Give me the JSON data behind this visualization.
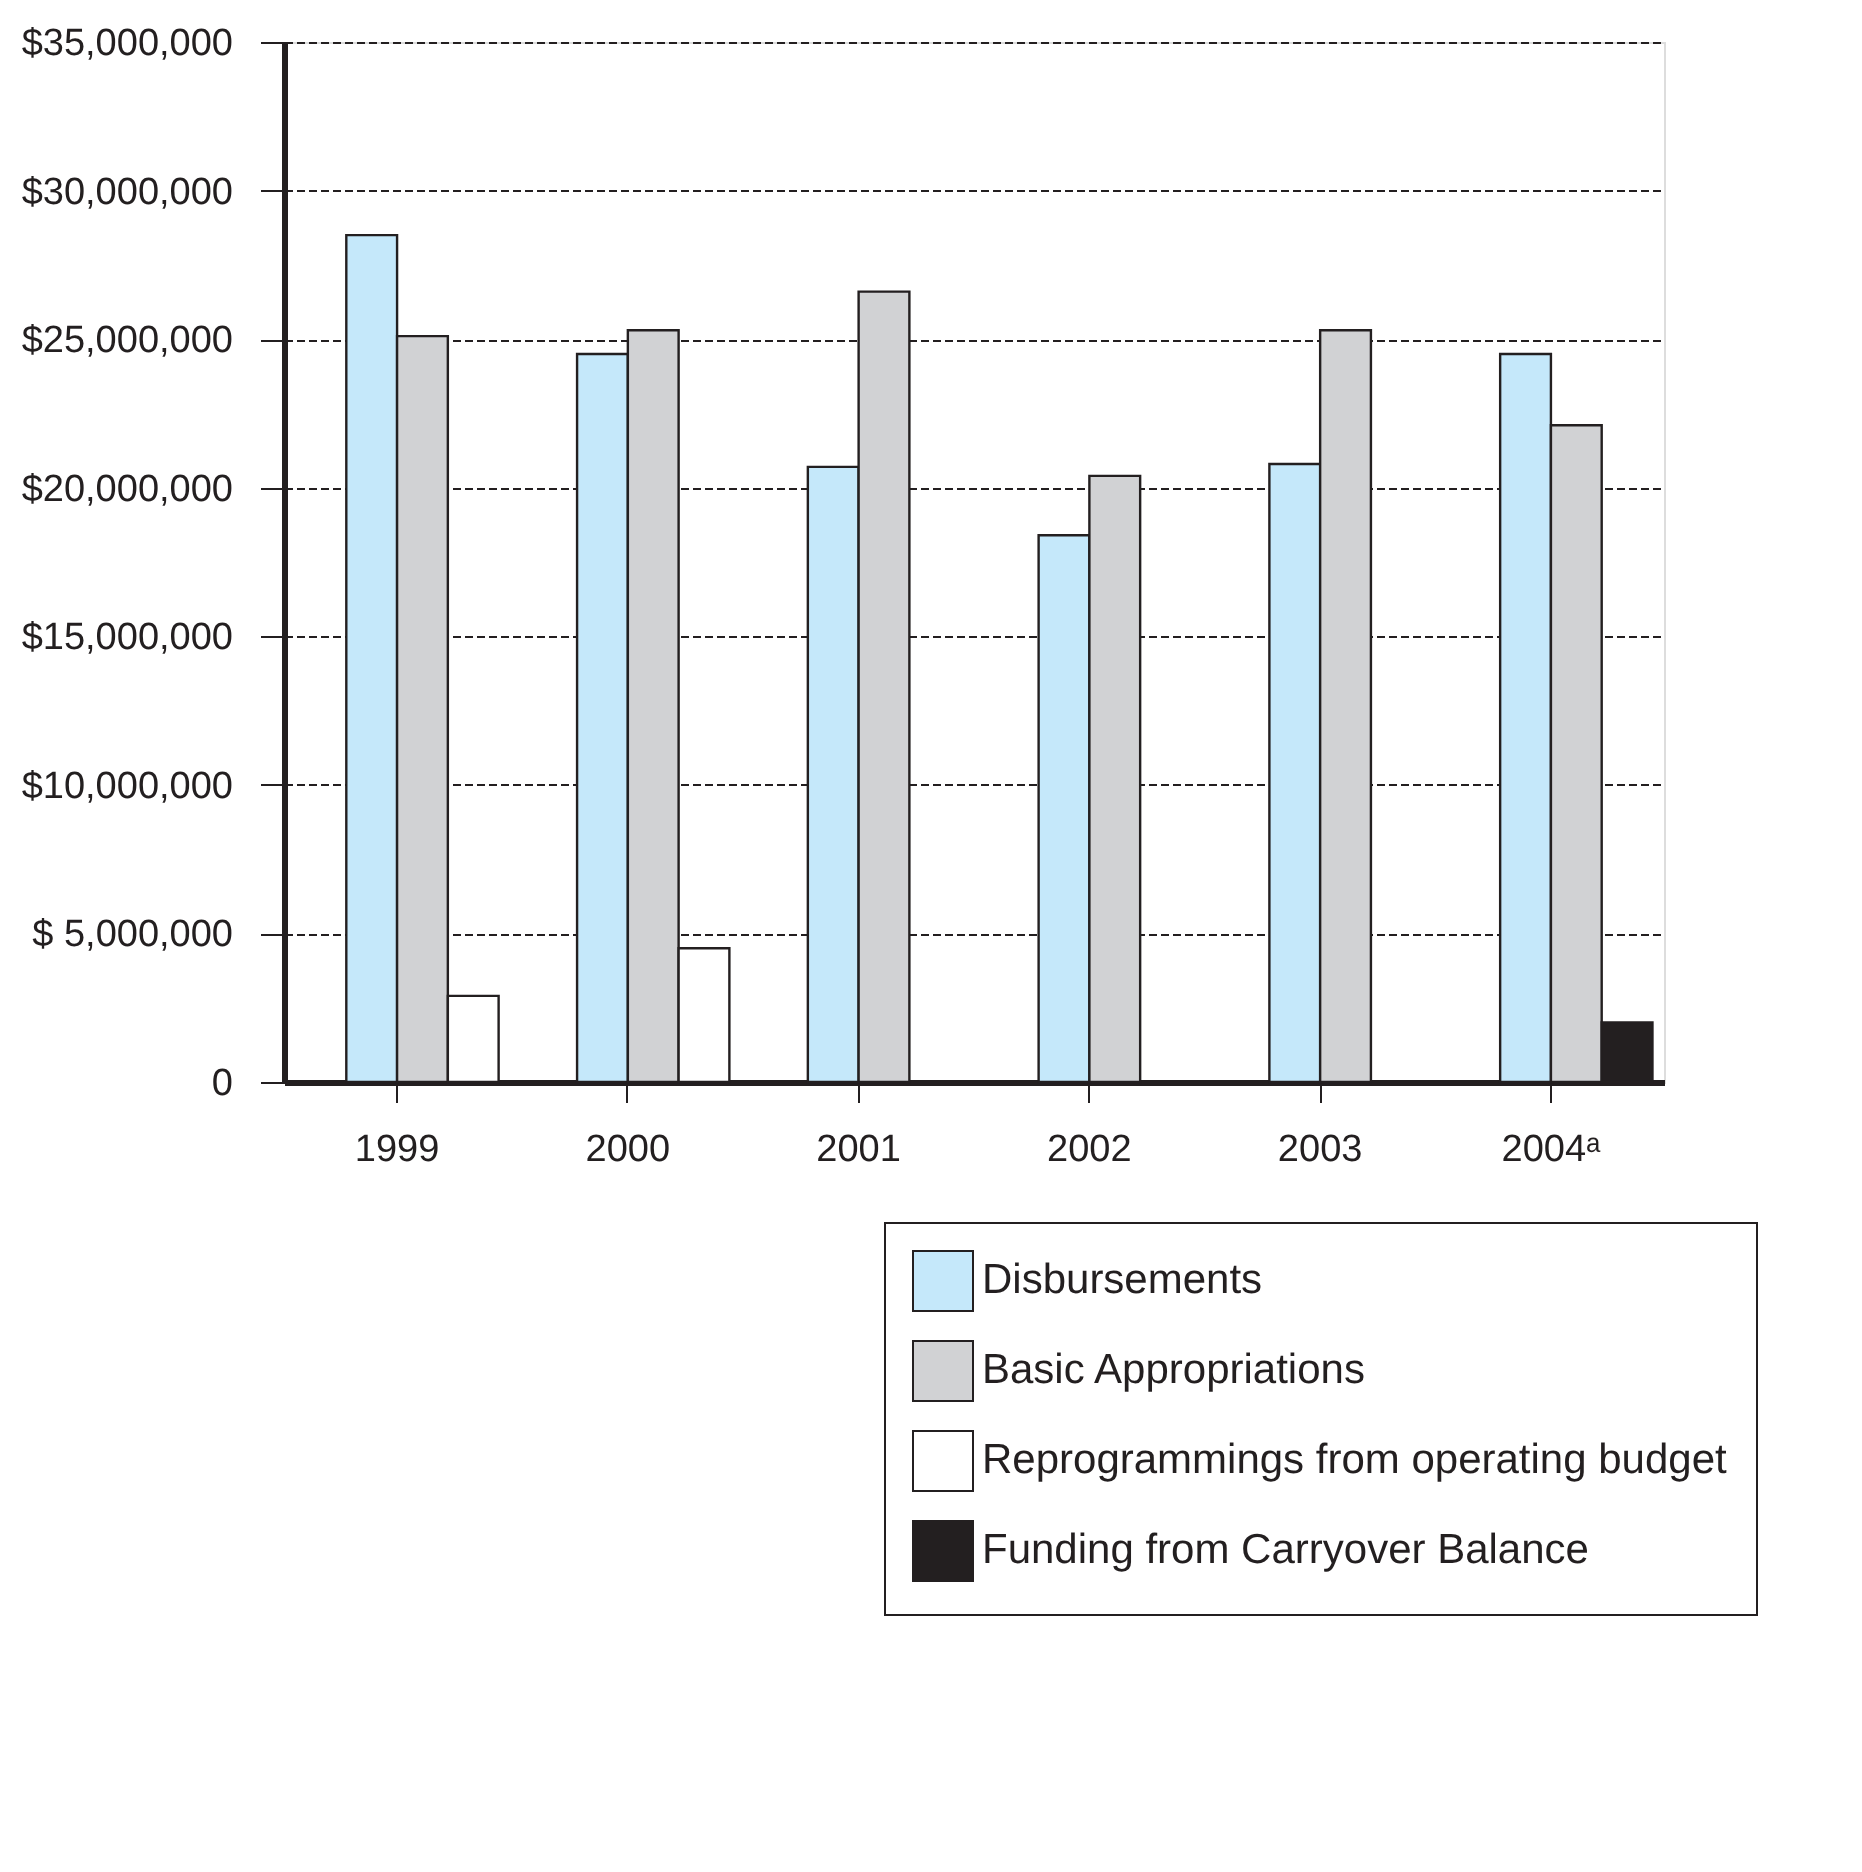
{
  "chart_data": {
    "type": "bar",
    "categories": [
      "1999",
      "2000",
      "2001",
      "2002",
      "2003",
      "2004ᵃ"
    ],
    "series": [
      {
        "name": "Disbursements",
        "color": "#c5e8fa",
        "values": [
          28500000,
          24500000,
          20700000,
          18400000,
          20800000,
          24500000
        ]
      },
      {
        "name": "Basic Appropriations",
        "color": "#d1d2d4",
        "values": [
          25100000,
          25300000,
          26600000,
          20400000,
          25300000,
          22100000
        ]
      },
      {
        "name": "Reprogrammings from operating budget",
        "color": "#ffffff",
        "values": [
          2900000,
          4500000,
          null,
          null,
          null,
          null
        ]
      },
      {
        "name": "Funding from Carryover Balance",
        "color": "#231f20",
        "values": [
          null,
          null,
          null,
          null,
          null,
          2000000
        ]
      }
    ],
    "ylim": [
      0,
      35000000
    ],
    "yticks": [
      {
        "value": 0,
        "label": "0"
      },
      {
        "value": 5000000,
        "label": "$ 5,000,000"
      },
      {
        "value": 10000000,
        "label": "$10,000,000"
      },
      {
        "value": 15000000,
        "label": "$15,000,000"
      },
      {
        "value": 20000000,
        "label": "$20,000,000"
      },
      {
        "value": 25000000,
        "label": "$25,000,000"
      },
      {
        "value": 30000000,
        "label": "$30,000,000"
      },
      {
        "value": 35000000,
        "label": "$35,000,000"
      }
    ],
    "grid": "y",
    "legend": "bottom right"
  }
}
